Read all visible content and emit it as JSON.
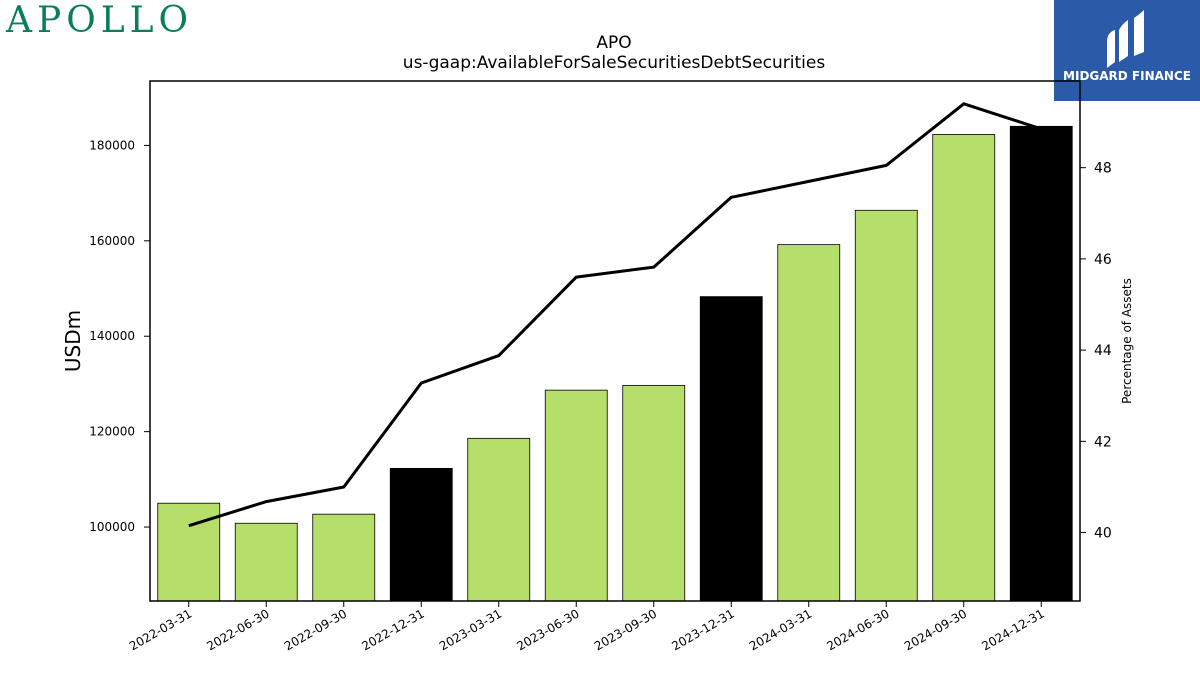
{
  "brand": {
    "logo_text": "APOLLO",
    "logo_color": "#0a7d5a"
  },
  "badge": {
    "text": "MIDGARD FINANCE",
    "bg_color": "#2b5aa8"
  },
  "chart_data": {
    "type": "bar",
    "title": "APO",
    "subtitle": "us-gaap:AvailableForSaleSecuritiesDebtSecurities",
    "ylabel": "USDm",
    "y2label": "Percentage of Assets",
    "categories": [
      "2022-03-31",
      "2022-06-30",
      "2022-09-30",
      "2022-12-31",
      "2023-03-31",
      "2023-06-30",
      "2023-09-30",
      "2023-12-31",
      "2024-03-31",
      "2024-06-30",
      "2024-09-30",
      "2024-12-31"
    ],
    "series": [
      {
        "type": "bar",
        "axis": "left",
        "values": [
          105000,
          100800,
          102700,
          112300,
          118600,
          128700,
          129700,
          148300,
          159200,
          166400,
          182300,
          184000
        ],
        "colors": [
          "#b5de6a",
          "#b5de6a",
          "#b5de6a",
          "#000000",
          "#b5de6a",
          "#b5de6a",
          "#b5de6a",
          "#000000",
          "#b5de6a",
          "#b5de6a",
          "#b5de6a",
          "#000000"
        ]
      },
      {
        "type": "line",
        "axis": "right",
        "color": "#000000",
        "values": [
          40.15,
          40.68,
          41.0,
          43.28,
          43.88,
          45.6,
          45.82,
          47.35,
          47.7,
          48.05,
          49.4,
          48.85
        ]
      }
    ],
    "ylim": [
      84500,
      193500
    ],
    "yticks": [
      100000,
      120000,
      140000,
      160000,
      180000
    ],
    "y2lim": [
      38.5,
      49.9
    ],
    "y2ticks": [
      40,
      42,
      44,
      46,
      48
    ],
    "grid": false
  }
}
